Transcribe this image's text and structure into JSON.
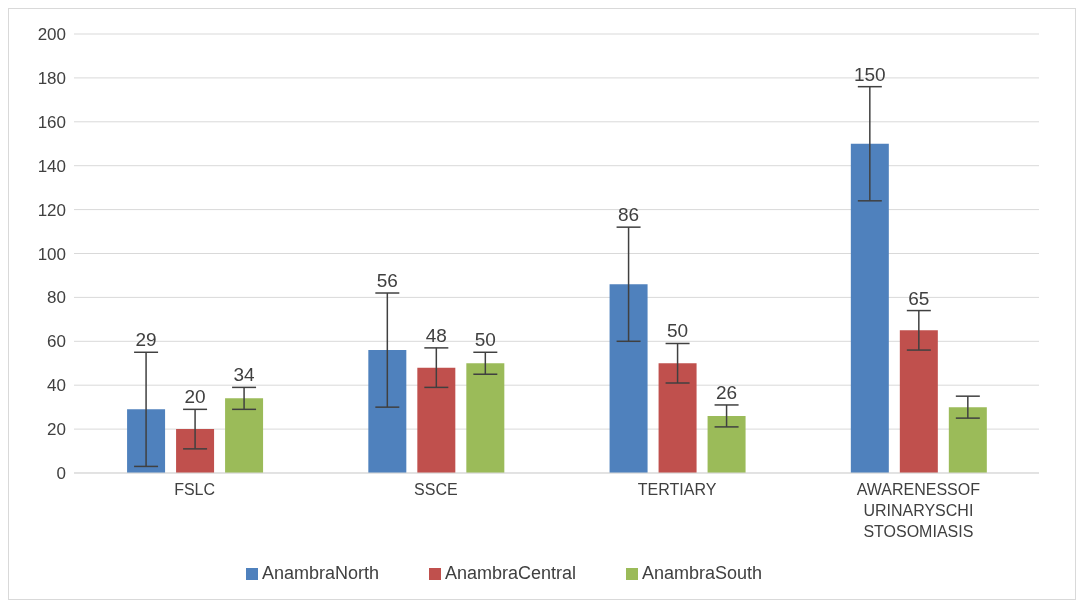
{
  "chart_data": {
    "type": "bar",
    "categories": [
      "FSLC",
      "SSCE",
      "TERTIARY",
      "AWARENESSOF URINARYSCHI STOSOMIASIS"
    ],
    "series": [
      {
        "name": "AnambraNorth",
        "color": "#4f81bd",
        "values": [
          29,
          56,
          86,
          150
        ],
        "errors": [
          26,
          26,
          26,
          26
        ],
        "value_labels": [
          "29",
          "56",
          "86",
          "150"
        ]
      },
      {
        "name": "AnambraCentral",
        "color": "#c0504d",
        "values": [
          20,
          48,
          50,
          65
        ],
        "errors": [
          9,
          9,
          9,
          9
        ],
        "value_labels": [
          "20",
          "48",
          "50",
          "65"
        ]
      },
      {
        "name": "AnambraSouth",
        "color": "#9bbb59",
        "values": [
          34,
          50,
          26,
          30
        ],
        "errors": [
          5,
          5,
          5,
          5
        ],
        "value_labels": [
          "34",
          "50",
          "26",
          null
        ]
      }
    ],
    "ylim": [
      0,
      200
    ],
    "yticks": [
      0,
      20,
      40,
      60,
      80,
      100,
      120,
      140,
      160,
      180,
      200
    ],
    "grid": "y",
    "legend": "bottom"
  }
}
